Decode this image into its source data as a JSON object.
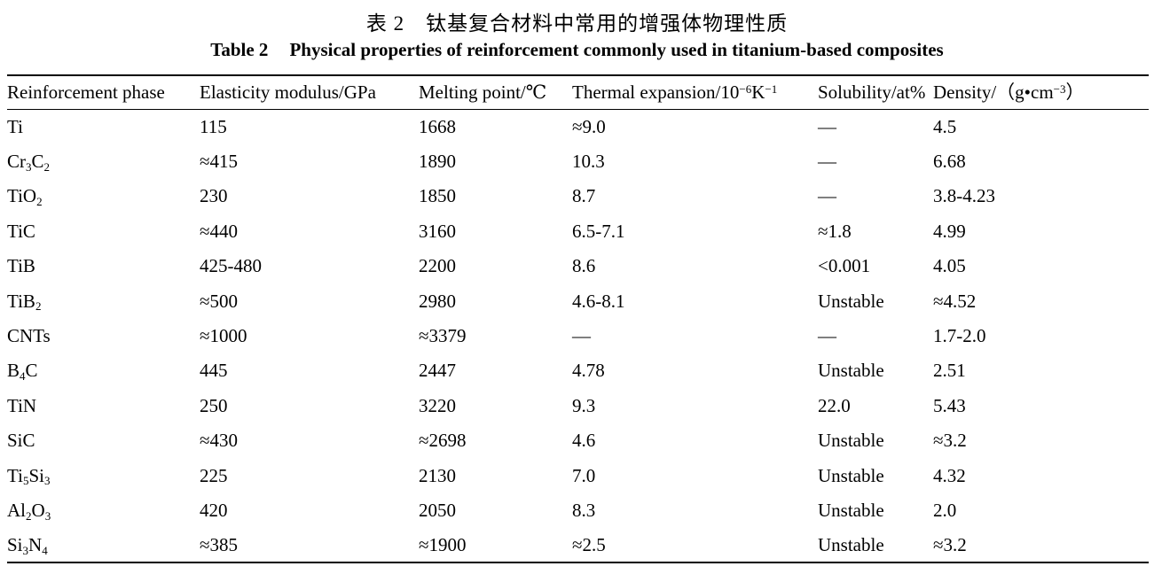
{
  "caption_cn": {
    "label": "表 2",
    "text": "钛基复合材料中常用的增强体物理性质"
  },
  "caption_en": {
    "label": "Table 2",
    "text": "Physical properties of reinforcement commonly used in titanium-based composites"
  },
  "table": {
    "columns": [
      {
        "key": "phase",
        "label": "Reinforcement phase"
      },
      {
        "key": "elasticity",
        "label": "Elasticity modulus/GPa"
      },
      {
        "key": "melting",
        "label": "Melting point/℃"
      },
      {
        "key": "thermal",
        "label": "Thermal expansion/10{^−6}K{^−1}"
      },
      {
        "key": "solubility",
        "label": "Solubility/at%"
      },
      {
        "key": "density",
        "label": "Density/（g•cm{^−3}）"
      }
    ],
    "rows": [
      {
        "phase": "Ti",
        "elasticity": "115",
        "melting": "1668",
        "thermal": "≈9.0",
        "solubility": "—",
        "density": "4.5"
      },
      {
        "phase": "Cr{_3}C{_2}",
        "elasticity": "≈415",
        "melting": "1890",
        "thermal": "10.3",
        "solubility": "—",
        "density": "6.68"
      },
      {
        "phase": "TiO{_2}",
        "elasticity": "230",
        "melting": "1850",
        "thermal": "8.7",
        "solubility": "—",
        "density": "3.8-4.23"
      },
      {
        "phase": "TiC",
        "elasticity": "≈440",
        "melting": "3160",
        "thermal": "6.5-7.1",
        "solubility": "≈1.8",
        "density": "4.99"
      },
      {
        "phase": "TiB",
        "elasticity": "425-480",
        "melting": "2200",
        "thermal": "8.6",
        "solubility": "<0.001",
        "density": "4.05"
      },
      {
        "phase": "TiB{_2}",
        "elasticity": "≈500",
        "melting": "2980",
        "thermal": "4.6-8.1",
        "solubility": "Unstable",
        "density": "≈4.52"
      },
      {
        "phase": "CNTs",
        "elasticity": "≈1000",
        "melting": "≈3379",
        "thermal": "—",
        "solubility": "—",
        "density": "1.7-2.0"
      },
      {
        "phase": "B{_4}C",
        "elasticity": "445",
        "melting": "2447",
        "thermal": "4.78",
        "solubility": "Unstable",
        "density": "2.51"
      },
      {
        "phase": "TiN",
        "elasticity": "250",
        "melting": "3220",
        "thermal": "9.3",
        "solubility": "22.0",
        "density": "5.43"
      },
      {
        "phase": "SiC",
        "elasticity": "≈430",
        "melting": "≈2698",
        "thermal": "4.6",
        "solubility": "Unstable",
        "density": "≈3.2"
      },
      {
        "phase": "Ti{_5}Si{_3}",
        "elasticity": "225",
        "melting": "2130",
        "thermal": "7.0",
        "solubility": "Unstable",
        "density": "4.32"
      },
      {
        "phase": "Al{_2}O{_3}",
        "elasticity": "420",
        "melting": "2050",
        "thermal": "8.3",
        "solubility": "Unstable",
        "density": "2.0"
      },
      {
        "phase": "Si{_3}N{_4}",
        "elasticity": "≈385",
        "melting": "≈1900",
        "thermal": "≈2.5",
        "solubility": "Unstable",
        "density": "≈3.2"
      }
    ]
  }
}
